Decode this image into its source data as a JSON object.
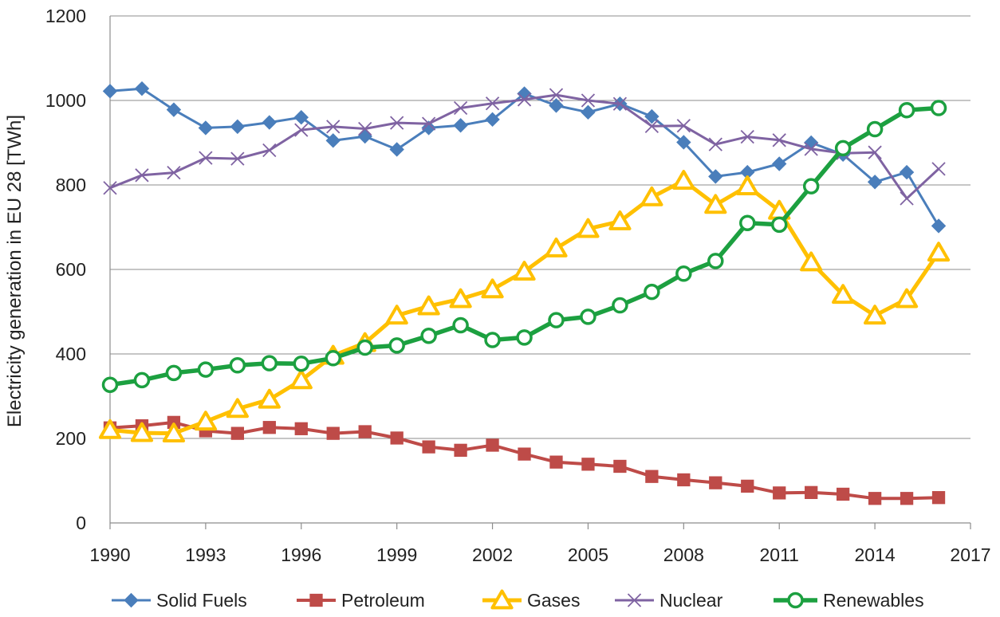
{
  "chart_data": {
    "type": "line",
    "title": "",
    "xlabel": "",
    "ylabel": "Electricity generation in EU 28  [TWh]",
    "xlim": [
      1990,
      2017
    ],
    "ylim": [
      0,
      1200
    ],
    "x_ticks": [
      1990,
      1993,
      1996,
      1999,
      2002,
      2005,
      2008,
      2011,
      2014,
      2017
    ],
    "y_ticks": [
      0,
      200,
      400,
      600,
      800,
      1000,
      1200
    ],
    "grid": "horizontal",
    "legend_position": "bottom",
    "x": [
      1990,
      1991,
      1992,
      1993,
      1994,
      1995,
      1996,
      1997,
      1998,
      1999,
      2000,
      2001,
      2002,
      2003,
      2004,
      2005,
      2006,
      2007,
      2008,
      2009,
      2010,
      2011,
      2012,
      2013,
      2014,
      2015,
      2016
    ],
    "series": [
      {
        "name": "Solid Fuels",
        "color": "#4a7ebb",
        "marker": "diamond",
        "values": [
          1022,
          1028,
          978,
          935,
          938,
          948,
          960,
          905,
          915,
          884,
          935,
          941,
          955,
          1016,
          988,
          972,
          992,
          962,
          901,
          820,
          830,
          850,
          900,
          872,
          807,
          830,
          703
        ]
      },
      {
        "name": "Petroleum",
        "color": "#be4b48",
        "marker": "square",
        "values": [
          225,
          230,
          238,
          218,
          212,
          226,
          223,
          212,
          216,
          201,
          180,
          172,
          184,
          163,
          144,
          139,
          134,
          110,
          102,
          95,
          87,
          71,
          72,
          68,
          58,
          58,
          60
        ]
      },
      {
        "name": "Gases",
        "color": "#ffc000",
        "marker": "triangle",
        "values": [
          220,
          213,
          212,
          240,
          270,
          292,
          338,
          396,
          426,
          491,
          513,
          530,
          553,
          595,
          650,
          696,
          714,
          771,
          810,
          753,
          797,
          739,
          617,
          540,
          491,
          530,
          640
        ]
      },
      {
        "name": "Nuclear",
        "color": "#7f63a2",
        "marker": "x",
        "values": [
          793,
          823,
          829,
          864,
          862,
          882,
          930,
          938,
          933,
          947,
          945,
          982,
          993,
          1002,
          1013,
          1000,
          992,
          939,
          940,
          896,
          914,
          906,
          885,
          875,
          877,
          768,
          838
        ]
      },
      {
        "name": "Renewables",
        "color": "#1ca040",
        "marker": "circle",
        "values": [
          327,
          338,
          355,
          363,
          373,
          378,
          377,
          390,
          415,
          420,
          443,
          468,
          433,
          439,
          480,
          488,
          515,
          547,
          590,
          620,
          710,
          706,
          797,
          887,
          932,
          977,
          982
        ]
      }
    ]
  }
}
